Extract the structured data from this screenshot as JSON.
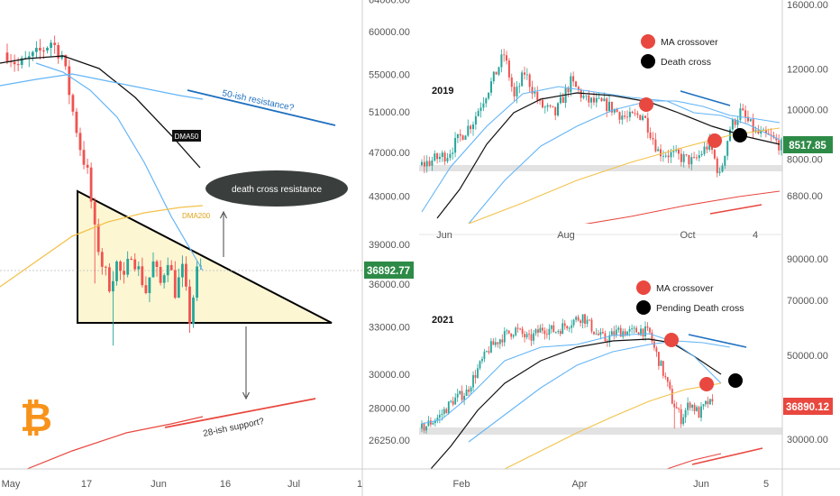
{
  "colors": {
    "up": "#26a69a",
    "down": "#ef5350",
    "ma50": "#111111",
    "ma_blue": "#64b5f6",
    "ma200": "#f3c14a",
    "support": "#e8483f",
    "resistance": "#1e6fbf",
    "triangle_fill": "#fdf6d3",
    "price_tag": "#2e8b47",
    "price_tag_red": "#e8483f",
    "bitcoin": "#f7931a"
  },
  "main": {
    "y_ticks": [
      "64000.00",
      "60000.00",
      "55000.00",
      "51000.00",
      "47000.00",
      "43000.00",
      "39000.00",
      "36000.00",
      "33000.00",
      "30000.00",
      "28000.00",
      "26250.00"
    ],
    "y_tick_values": [
      64000,
      60000,
      55000,
      51000,
      47000,
      43000,
      39000,
      36000,
      33000,
      30000,
      28000,
      26250
    ],
    "x_ticks": [
      "May",
      "17",
      "Jun",
      "16",
      "Jul",
      "1"
    ],
    "price_tag": "36892.77",
    "labels": {
      "dma50": "DMA50",
      "dma200": "DMA200",
      "resistance": "50-ish resistance?",
      "support": "28-ish support?",
      "death_cross": "death cross resistance"
    },
    "icon": "bitcoin-icon"
  },
  "panel_2019": {
    "year": "2019",
    "legend": [
      {
        "label": "MA crossover",
        "color": "#e8483f"
      },
      {
        "label": "Death cross",
        "color": "#000000"
      }
    ],
    "y_ticks": [
      "16000.00",
      "12000.00",
      "10000.00",
      "8000.00",
      "6800.00"
    ],
    "y_tick_values": [
      16000,
      12000,
      10000,
      8000,
      6800
    ],
    "x_ticks": [
      "Jun",
      "Aug",
      "Oct",
      "4"
    ],
    "price_tag": "8517.85"
  },
  "panel_2021": {
    "year": "2021",
    "legend": [
      {
        "label": "MA crossover",
        "color": "#e8483f"
      },
      {
        "label": "Pending Death cross",
        "color": "#000000"
      }
    ],
    "y_ticks": [
      "90000.00",
      "70000.00",
      "50000.00",
      "30000.00"
    ],
    "y_tick_values": [
      90000,
      70000,
      50000,
      30000
    ],
    "x_ticks": [
      "Feb",
      "Apr",
      "Jun",
      "5"
    ],
    "price_tag": "36890.12"
  },
  "chart_data": [
    {
      "type": "candlestick",
      "title": "",
      "y_scale": "log",
      "ylim": [
        25000,
        65500
      ],
      "x_ticks": [
        "May",
        "17",
        "Jun",
        "16",
        "Jul",
        "1"
      ],
      "series": [
        {
          "name": "DMA50"
        },
        {
          "name": "DMA200"
        }
      ],
      "annotations": [
        "50-ish resistance?",
        "28-ish support?",
        "death cross resistance"
      ]
    },
    {
      "type": "candlestick",
      "title": "2019",
      "y_scale": "log",
      "ylim": [
        6000,
        17500
      ],
      "x_ticks": [
        "Jun",
        "Aug",
        "Oct",
        "4"
      ],
      "annotations": [
        "MA crossover",
        "Death cross"
      ]
    },
    {
      "type": "candlestick",
      "title": "2021",
      "y_scale": "log",
      "ylim": [
        23000,
        100000
      ],
      "x_ticks": [
        "Feb",
        "Apr",
        "Jun",
        "5"
      ],
      "annotations": [
        "MA crossover",
        "Pending Death cross"
      ]
    }
  ]
}
